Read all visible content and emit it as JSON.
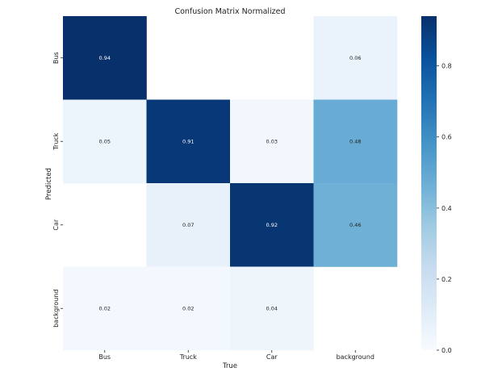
{
  "chart_data": {
    "type": "heatmap",
    "title": "Confusion Matrix Normalized",
    "xlabel": "True",
    "ylabel": "Predicted",
    "x_categories": [
      "Bus",
      "Truck",
      "Car",
      "background"
    ],
    "y_categories": [
      "Bus",
      "Truck",
      "Car",
      "background"
    ],
    "values": [
      [
        0.94,
        null,
        null,
        0.06
      ],
      [
        0.05,
        0.91,
        0.03,
        0.48
      ],
      [
        null,
        0.07,
        0.92,
        0.46
      ],
      [
        0.02,
        0.02,
        0.04,
        null
      ]
    ],
    "colorbar": {
      "range": [
        0.0,
        0.94
      ],
      "ticks": [
        0.0,
        0.2,
        0.4,
        0.6,
        0.8
      ],
      "tick_labels": [
        "0.0",
        "0.2",
        "0.4",
        "0.6",
        "0.8"
      ],
      "colormap": "Blues",
      "color_low": "#f7fbff",
      "color_high": "#08306b"
    },
    "grid": false
  }
}
